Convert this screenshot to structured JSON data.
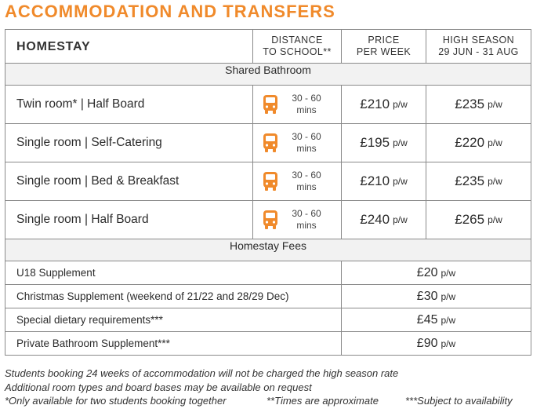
{
  "title": "ACCOMMODATION AND TRANSFERS",
  "header": {
    "col1": "HOMESTAY",
    "col2_line1": "DISTANCE",
    "col2_line2": "TO SCHOOL**",
    "col3_line1": "PRICE",
    "col3_line2": "PER WEEK",
    "col4_line1": "HIGH SEASON",
    "col4_line2": "29 JUN - 31 AUG"
  },
  "section1": "Shared Bathroom",
  "rooms": [
    {
      "name": "Twin room*  |  Half Board",
      "distance_top": "30 - 60",
      "distance_bottom": "mins",
      "price": "£210",
      "high": "£235",
      "unit": "p/w",
      "icon": "bus-icon"
    },
    {
      "name": "Single room  |  Self-Catering",
      "distance_top": "30 - 60",
      "distance_bottom": "mins",
      "price": "£195",
      "high": "£220",
      "unit": "p/w",
      "icon": "bus-icon"
    },
    {
      "name": "Single room  |  Bed & Breakfast",
      "distance_top": "30 - 60",
      "distance_bottom": "mins",
      "price": "£210",
      "high": "£235",
      "unit": "p/w",
      "icon": "bus-icon"
    },
    {
      "name": "Single room  |  Half Board",
      "distance_top": "30 - 60",
      "distance_bottom": "mins",
      "price": "£240",
      "high": "£265",
      "unit": "p/w",
      "icon": "bus-icon"
    }
  ],
  "section2": "Homestay Fees",
  "fees": [
    {
      "name": "U18 Supplement",
      "price": "£20",
      "unit": "p/w"
    },
    {
      "name": "Christmas Supplement (weekend of 21/22 and 28/29 Dec)",
      "price": "£30",
      "unit": "p/w"
    },
    {
      "name": "Special dietary requirements***",
      "price": "£45",
      "unit": "p/w"
    },
    {
      "name": "Private Bathroom Supplement***",
      "price": "£90",
      "unit": "p/w"
    }
  ],
  "notes": {
    "line1": "Students booking 24 weeks of accommodation will not be charged the high season rate",
    "line2": "Additional room types and board bases may be available on request",
    "line3a": "*Only available for two students booking together",
    "line3b": "**Times are approximate",
    "line3c": "***Subject to availability"
  },
  "colors": {
    "accent": "#f08a2b",
    "border": "#8a8a8a",
    "section_bg": "#f2f2f2"
  }
}
